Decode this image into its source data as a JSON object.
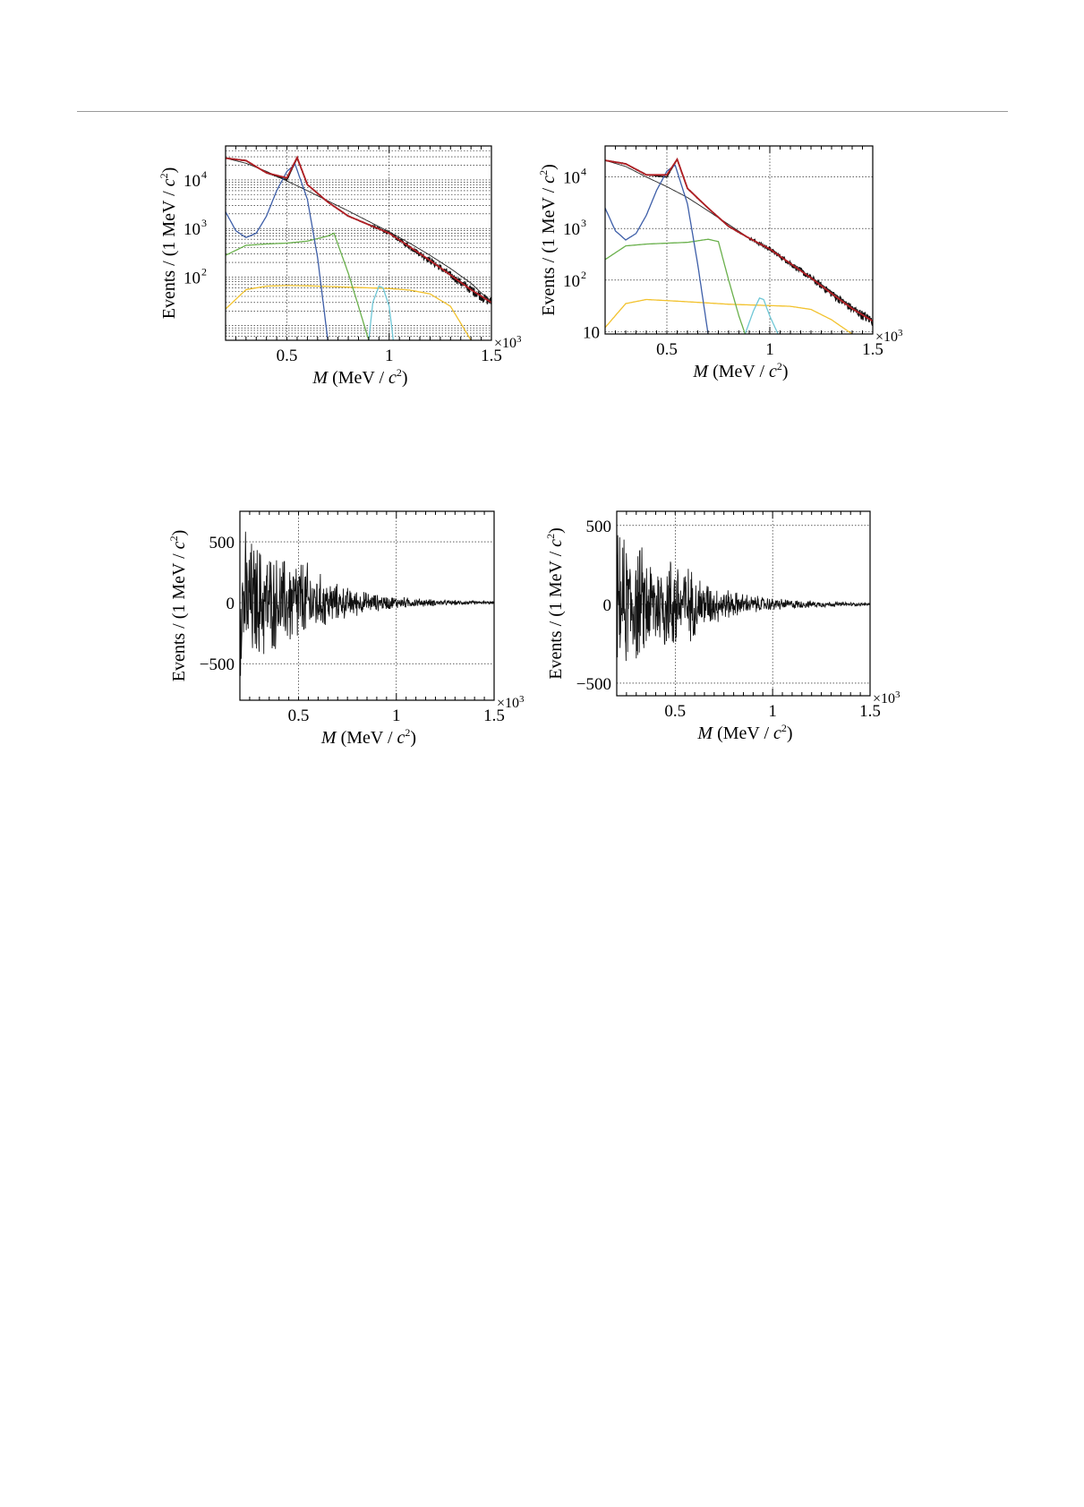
{
  "colors": {
    "frame": "#000000",
    "grid": "#000000",
    "data": "#111111",
    "total_fit": "#b01e23",
    "peak": "#3d5ea8",
    "smooth_background": "#222222",
    "green_component": "#6ab04c",
    "cyan_component": "#6fc7d6",
    "yellow_component": "#f2c22e"
  },
  "panels": [
    {
      "id": "top-left",
      "scale": "log",
      "xlabel": {
        "italic": "M",
        "text": " (MeV / ",
        "c": "c",
        "sup": "2",
        "close": ")"
      },
      "ylabel": {
        "text": "Events / (1 MeV / ",
        "c": "c",
        "sup": "2",
        "close": ")"
      },
      "x_multiplier": {
        "times": "×10",
        "exp": "3"
      },
      "x_ticks": [
        "0.5",
        "1",
        "1.5"
      ],
      "y_ticks": [
        {
          "base": "10",
          "exp": "2"
        },
        {
          "base": "10",
          "exp": "3"
        },
        {
          "base": "10",
          "exp": "4"
        }
      ]
    },
    {
      "id": "top-right",
      "scale": "log",
      "xlabel": {
        "italic": "M",
        "text": " (MeV / ",
        "c": "c",
        "sup": "2",
        "close": ")"
      },
      "ylabel": {
        "text": "Events / (1 MeV / ",
        "c": "c",
        "sup": "2",
        "close": ")"
      },
      "x_multiplier": {
        "times": "×10",
        "exp": "3"
      },
      "x_ticks": [
        "0.5",
        "1",
        "1.5"
      ],
      "y_ticks": [
        {
          "base": "10",
          "exp": ""
        },
        {
          "base": "10",
          "exp": "2"
        },
        {
          "base": "10",
          "exp": "3"
        },
        {
          "base": "10",
          "exp": "4"
        }
      ]
    },
    {
      "id": "bottom-left",
      "scale": "linear",
      "xlabel": {
        "italic": "M",
        "text": " (MeV / ",
        "c": "c",
        "sup": "2",
        "close": ")"
      },
      "ylabel": {
        "text": "Events / (1 MeV / ",
        "c": "c",
        "sup": "2",
        "close": ")"
      },
      "x_multiplier": {
        "times": "×10",
        "exp": "3"
      },
      "x_ticks": [
        "0.5",
        "1",
        "1.5"
      ],
      "y_ticks": [
        "−500",
        "0",
        "500"
      ]
    },
    {
      "id": "bottom-right",
      "scale": "linear",
      "xlabel": {
        "italic": "M",
        "text": " (MeV / ",
        "c": "c",
        "sup": "2",
        "close": ")"
      },
      "ylabel": {
        "text": "Events / (1 MeV / ",
        "c": "c",
        "sup": "2",
        "close": ")"
      },
      "x_multiplier": {
        "times": "×10",
        "exp": "3"
      },
      "x_ticks": [
        "0.5",
        "1",
        "1.5"
      ],
      "y_ticks": [
        "−500",
        "0",
        "500"
      ]
    }
  ],
  "chart_data": [
    {
      "type": "line",
      "panel": "top-left",
      "xlabel": "M (MeV / c²)",
      "ylabel": "Events / (1 MeV / c²)",
      "x_unit_multiplier": "×10³",
      "xlim": [
        0.2,
        1.5
      ],
      "ylim": [
        5,
        50000
      ],
      "yscale": "log",
      "grid": true,
      "series": [
        {
          "role": "data-histogram",
          "x": [
            0.2,
            0.3,
            0.4,
            0.5,
            0.55,
            0.6,
            0.7,
            0.8,
            0.9,
            1.0,
            1.1,
            1.2,
            1.3,
            1.4,
            1.5
          ],
          "values": [
            28000,
            25000,
            14000,
            10000,
            28000,
            8000,
            3500,
            1800,
            1200,
            800,
            420,
            220,
            110,
            55,
            30
          ]
        },
        {
          "role": "total-fit",
          "x": [
            0.2,
            0.3,
            0.4,
            0.5,
            0.55,
            0.6,
            0.7,
            0.8,
            0.9,
            1.0,
            1.1,
            1.2,
            1.3,
            1.4,
            1.5
          ],
          "values": [
            28000,
            25000,
            14000,
            11000,
            29000,
            8000,
            3500,
            1800,
            1200,
            800,
            420,
            220,
            110,
            55,
            30
          ]
        },
        {
          "role": "smooth-background",
          "x": [
            0.2,
            0.3,
            0.4,
            0.5,
            0.6,
            0.7,
            0.8,
            0.9,
            1.0,
            1.1,
            1.2,
            1.3,
            1.4,
            1.5
          ],
          "values": [
            28000,
            22000,
            15000,
            9500,
            6000,
            3700,
            2300,
            1400,
            850,
            500,
            280,
            150,
            75,
            30
          ]
        },
        {
          "role": "peak-component",
          "x": [
            0.2,
            0.25,
            0.3,
            0.35,
            0.4,
            0.45,
            0.5,
            0.54,
            0.6,
            0.65,
            0.7
          ],
          "values": [
            2200,
            900,
            650,
            800,
            1800,
            6000,
            15000,
            21000,
            4000,
            250,
            5
          ]
        },
        {
          "role": "green-component",
          "x": [
            0.2,
            0.3,
            0.4,
            0.5,
            0.6,
            0.7,
            0.73,
            0.8,
            0.85,
            0.9
          ],
          "values": [
            280,
            450,
            480,
            500,
            550,
            700,
            800,
            120,
            25,
            5
          ]
        },
        {
          "role": "cyan-component",
          "x": [
            0.9,
            0.92,
            0.95,
            0.97,
            1.0,
            1.02
          ],
          "values": [
            5,
            30,
            65,
            60,
            25,
            5
          ]
        },
        {
          "role": "yellow-component",
          "x": [
            0.2,
            0.3,
            0.4,
            0.5,
            0.6,
            0.7,
            0.8,
            0.9,
            1.0,
            1.1,
            1.2,
            1.3,
            1.4
          ],
          "values": [
            22,
            55,
            65,
            67,
            66,
            64,
            62,
            60,
            58,
            54,
            45,
            25,
            5
          ]
        }
      ]
    },
    {
      "type": "line",
      "panel": "top-right",
      "xlabel": "M (MeV / c²)",
      "ylabel": "Events / (1 MeV / c²)",
      "x_unit_multiplier": "×10³",
      "xlim": [
        0.2,
        1.5
      ],
      "ylim": [
        9,
        40000
      ],
      "yscale": "log",
      "grid": true,
      "series": [
        {
          "role": "data-histogram",
          "x": [
            0.2,
            0.3,
            0.4,
            0.5,
            0.55,
            0.6,
            0.7,
            0.8,
            0.9,
            1.0,
            1.1,
            1.2,
            1.3,
            1.4,
            1.5
          ],
          "values": [
            21000,
            18000,
            11000,
            10000,
            22000,
            6000,
            2500,
            1100,
            650,
            400,
            210,
            110,
            55,
            28,
            16
          ]
        },
        {
          "role": "total-fit",
          "x": [
            0.2,
            0.3,
            0.4,
            0.5,
            0.55,
            0.6,
            0.7,
            0.8,
            0.9,
            1.0,
            1.1,
            1.2,
            1.3,
            1.4,
            1.5
          ],
          "values": [
            21000,
            18000,
            11000,
            11000,
            22000,
            6000,
            2500,
            1100,
            650,
            400,
            210,
            110,
            55,
            28,
            16
          ]
        },
        {
          "role": "smooth-background",
          "x": [
            0.2,
            0.3,
            0.4,
            0.5,
            0.6,
            0.7,
            0.8,
            0.9,
            1.0,
            1.1,
            1.2,
            1.3,
            1.4,
            1.5
          ],
          "values": [
            21000,
            16000,
            10000,
            6500,
            4000,
            2200,
            1200,
            650,
            380,
            210,
            115,
            60,
            30,
            16
          ]
        },
        {
          "role": "peak-component",
          "x": [
            0.2,
            0.25,
            0.3,
            0.35,
            0.4,
            0.45,
            0.5,
            0.54,
            0.6,
            0.65,
            0.7
          ],
          "values": [
            2500,
            900,
            600,
            800,
            1800,
            5500,
            13000,
            17000,
            3000,
            200,
            9
          ]
        },
        {
          "role": "green-component",
          "x": [
            0.2,
            0.3,
            0.4,
            0.5,
            0.6,
            0.7,
            0.75,
            0.8,
            0.85,
            0.88
          ],
          "values": [
            250,
            460,
            500,
            520,
            540,
            620,
            560,
            100,
            20,
            9
          ]
        },
        {
          "role": "cyan-component",
          "x": [
            0.88,
            0.92,
            0.95,
            0.97,
            1.0,
            1.04
          ],
          "values": [
            9,
            25,
            45,
            42,
            20,
            9
          ]
        },
        {
          "role": "yellow-component",
          "x": [
            0.2,
            0.3,
            0.4,
            0.5,
            0.6,
            0.7,
            0.8,
            0.9,
            1.0,
            1.1,
            1.2,
            1.3,
            1.4
          ],
          "values": [
            12,
            35,
            42,
            40,
            38,
            36,
            34,
            33,
            32,
            31,
            27,
            17,
            9
          ]
        }
      ]
    },
    {
      "type": "line",
      "panel": "bottom-left",
      "xlabel": "M (MeV / c²)",
      "ylabel": "Events / (1 MeV / c²)",
      "x_unit_multiplier": "×10³",
      "xlim": [
        0.2,
        1.5
      ],
      "ylim": [
        -800,
        750
      ],
      "yscale": "linear",
      "grid": true,
      "series": [
        {
          "role": "residuals",
          "envelope_x": [
            0.2,
            0.3,
            0.4,
            0.5,
            0.6,
            0.7,
            0.8,
            0.9,
            1.0,
            1.1,
            1.2,
            1.3,
            1.4,
            1.5
          ],
          "envelope_amplitude": [
            680,
            560,
            420,
            460,
            280,
            170,
            120,
            80,
            60,
            42,
            32,
            24,
            18,
            12
          ]
        }
      ]
    },
    {
      "type": "line",
      "panel": "bottom-right",
      "xlabel": "M (MeV / c²)",
      "ylabel": "Events / (1 MeV / c²)",
      "x_unit_multiplier": "×10³",
      "xlim": [
        0.2,
        1.5
      ],
      "ylim": [
        -580,
        590
      ],
      "yscale": "linear",
      "grid": true,
      "series": [
        {
          "role": "residuals",
          "envelope_x": [
            0.2,
            0.3,
            0.4,
            0.5,
            0.6,
            0.7,
            0.8,
            0.9,
            1.0,
            1.1,
            1.2,
            1.3,
            1.4,
            1.5
          ],
          "envelope_amplitude": [
            500,
            440,
            340,
            380,
            230,
            140,
            95,
            65,
            48,
            34,
            26,
            20,
            15,
            10
          ]
        }
      ]
    }
  ]
}
